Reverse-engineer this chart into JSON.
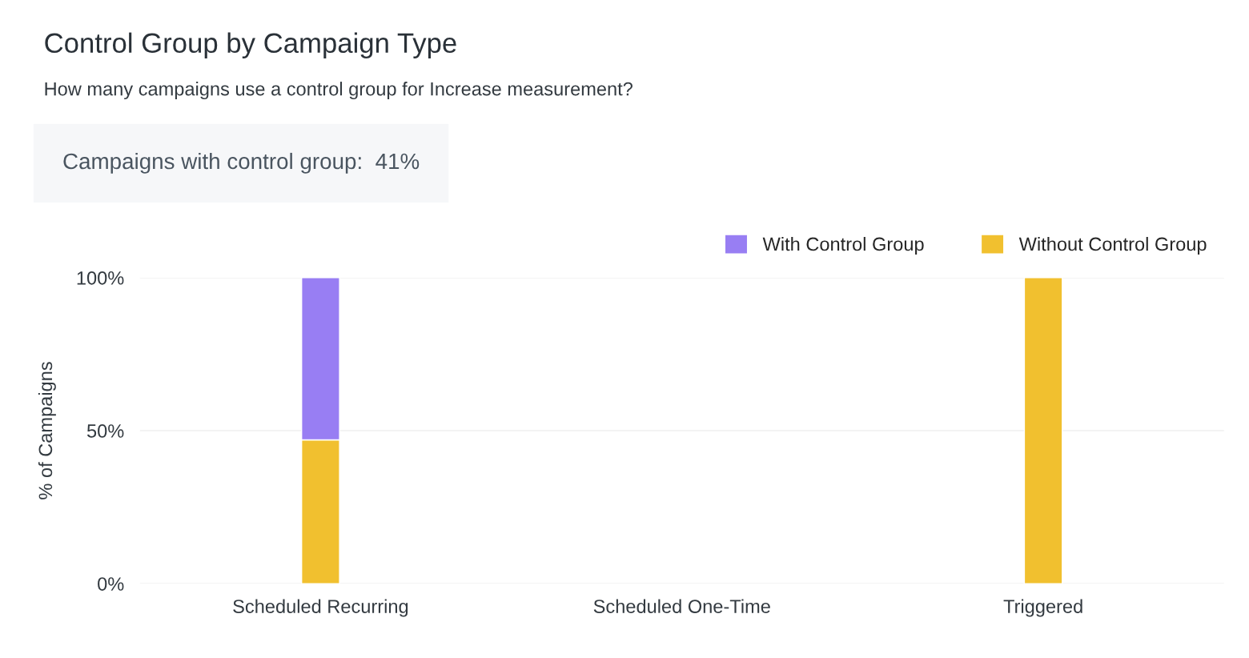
{
  "chart_data": {
    "type": "bar",
    "title": "Control Group by Campaign Type",
    "subtitle": "How many campaigns use a control group for Increase measurement?",
    "annotations": [
      "Campaigns with control group:  41%"
    ],
    "ylabel": "% of Campaigns",
    "categories": [
      "Scheduled Recurring",
      "Scheduled One-Time",
      "Triggered"
    ],
    "stacked": true,
    "series": [
      {
        "name": "Without Control Group",
        "color": "#f1c02f",
        "values": [
          47,
          null,
          100
        ]
      },
      {
        "name": "With Control Group",
        "color": "#987ef3",
        "values": [
          53,
          null,
          null
        ]
      }
    ],
    "ylim": [
      0,
      100
    ],
    "yticks": [
      {
        "value": 0,
        "label": "0%"
      },
      {
        "value": 50,
        "label": "50%"
      },
      {
        "value": 100,
        "label": "100%"
      }
    ],
    "grid": "y",
    "legend": "top right"
  }
}
